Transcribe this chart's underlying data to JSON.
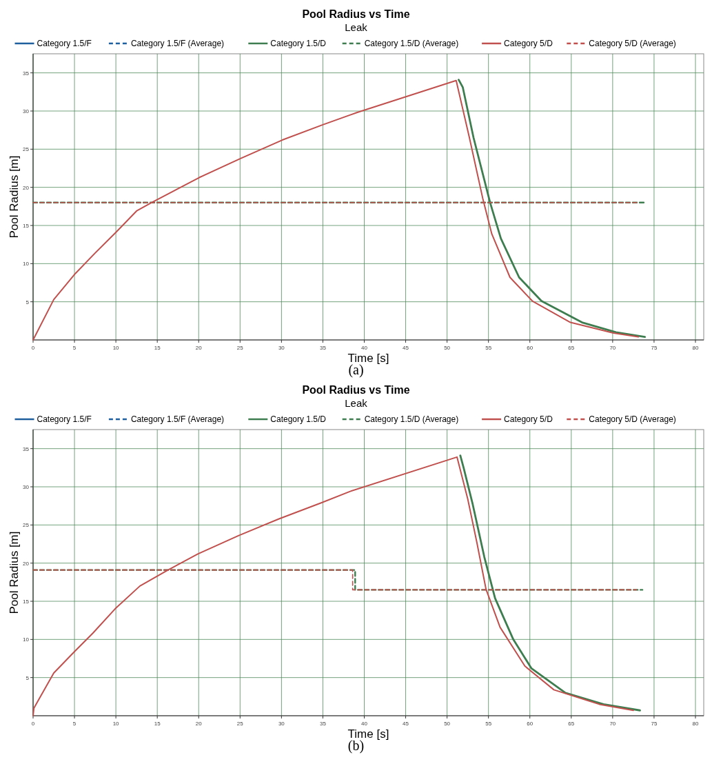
{
  "chart_data": [
    {
      "type": "line",
      "title": "Pool Radius vs Time",
      "subtitle": "Leak",
      "xlabel": "Time [s]",
      "ylabel": "Pool Radius [m]",
      "annotations": [
        "(a)"
      ],
      "xlim": [
        0,
        81
      ],
      "ylim": [
        0,
        37.5
      ],
      "xticks": [
        0,
        5,
        10,
        15,
        20,
        25,
        30,
        35,
        40,
        45,
        50,
        55,
        60,
        65,
        70,
        75,
        80
      ],
      "yticks": [
        5,
        10,
        15,
        20,
        25,
        30,
        35
      ],
      "grid": true,
      "legend": "top",
      "marker": "none",
      "series": [
        {
          "name": "Category 1.5/F",
          "color": "#1f5f9e",
          "line_style": "solid"
        },
        {
          "name": "Category 1.5/F (Average)",
          "color": "#1f5f9e",
          "line_style": "dashed"
        },
        {
          "name": "Category 1.5/D",
          "color": "#3e7d4f",
          "line_style": "solid",
          "x": [
            51.4,
            51.9,
            53.2,
            55.2,
            56.5,
            58.7,
            61.4,
            66.3,
            70.4,
            73.9
          ],
          "values": [
            34.1,
            33.1,
            26.5,
            18.0,
            13.3,
            8.2,
            5.1,
            2.3,
            1.0,
            0.4
          ]
        },
        {
          "name": "Category 1.5/D (Average)",
          "color": "#3e7d4f",
          "line_style": "dashed",
          "x": [
            0,
            73.9
          ],
          "values": [
            18.0,
            18.0
          ]
        },
        {
          "name": "Category 5/D",
          "color": "#c0504d",
          "line_style": "solid",
          "x": [
            0,
            2.5,
            5.1,
            7.5,
            10,
            12.5,
            14.3,
            20.1,
            25.1,
            30.1,
            35,
            39.1,
            51.1,
            52.7,
            54.3,
            55.4,
            57.6,
            60.3,
            64.9,
            70.1,
            73.1
          ],
          "values": [
            0,
            5.3,
            8.7,
            11.4,
            14.1,
            16.9,
            18.0,
            21.3,
            23.8,
            26.2,
            28.2,
            29.8,
            34.0,
            26.5,
            18.6,
            13.9,
            8.2,
            5.1,
            2.3,
            0.9,
            0.4
          ]
        },
        {
          "name": "Category 5/D (Average)",
          "color": "#c0504d",
          "line_style": "dashed",
          "x": [
            0,
            73.1
          ],
          "values": [
            18.0,
            18.0
          ]
        }
      ]
    },
    {
      "type": "line",
      "title": "Pool Radius vs Time",
      "subtitle": "Leak",
      "xlabel": "Time [s]",
      "ylabel": "Pool Radius [m]",
      "annotations": [
        "(b)"
      ],
      "xlim": [
        0,
        81
      ],
      "ylim": [
        0,
        37.5
      ],
      "xticks": [
        0,
        5,
        10,
        15,
        20,
        25,
        30,
        35,
        40,
        45,
        50,
        55,
        60,
        65,
        70,
        75,
        80
      ],
      "yticks": [
        5,
        10,
        15,
        20,
        25,
        30,
        35
      ],
      "grid": true,
      "legend": "top",
      "marker": "none",
      "series": [
        {
          "name": "Category 1.5/F",
          "color": "#1f5f9e",
          "line_style": "solid"
        },
        {
          "name": "Category 1.5/F (Average)",
          "color": "#1f5f9e",
          "line_style": "dashed"
        },
        {
          "name": "Category 1.5/D",
          "color": "#3e7d4f",
          "line_style": "solid",
          "x": [
            51.6,
            52.0,
            53.1,
            54.5,
            55.8,
            58.0,
            60.2,
            64.3,
            68.9,
            73.3
          ],
          "values": [
            34.1,
            32.5,
            27.7,
            20.8,
            15.4,
            10.0,
            6.2,
            3.0,
            1.5,
            0.7
          ]
        },
        {
          "name": "Category 1.5/D (Average)",
          "color": "#3e7d4f",
          "line_style": "dashed",
          "x": [
            0,
            38.9,
            38.9,
            73.6
          ],
          "values": [
            19.1,
            19.1,
            16.5,
            16.5
          ]
        },
        {
          "name": "Category 5/D",
          "color": "#c0504d",
          "line_style": "solid",
          "x": [
            0,
            0.1,
            2.5,
            5,
            7.2,
            9.9,
            12.9,
            16.3,
            19.9,
            24.8,
            29.7,
            34.8,
            38.3,
            51.2,
            52.5,
            53.6,
            54.7,
            56.4,
            59.4,
            62.9,
            68.4,
            72.5
          ],
          "values": [
            0,
            1.0,
            5.6,
            8.4,
            10.8,
            14.0,
            17.0,
            19.1,
            21.2,
            23.6,
            25.8,
            27.9,
            29.4,
            33.9,
            28.4,
            22.7,
            16.6,
            11.6,
            6.5,
            3.4,
            1.5,
            0.7
          ]
        },
        {
          "name": "Category 5/D (Average)",
          "color": "#c0504d",
          "line_style": "dashed",
          "x": [
            0,
            38.6,
            38.6,
            72.9
          ],
          "values": [
            19.1,
            19.1,
            16.5,
            16.5
          ]
        }
      ]
    }
  ]
}
